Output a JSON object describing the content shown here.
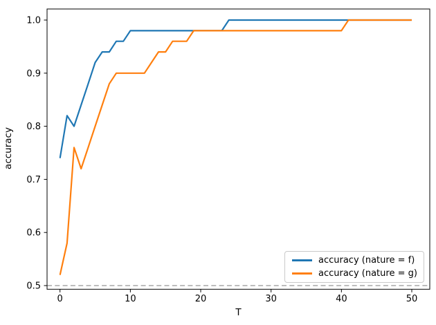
{
  "chart_data": {
    "type": "line",
    "title": "",
    "xlabel": "T",
    "ylabel": "accuracy",
    "grid": false,
    "legend_position": "lower right",
    "xlim": [
      -1.8,
      52.6
    ],
    "ylim": [
      0.4935,
      1.0208
    ],
    "xticks": [
      0,
      10,
      20,
      30,
      40,
      50
    ],
    "xtick_labels": [
      "0",
      "10",
      "20",
      "30",
      "40",
      "50"
    ],
    "yticks": [
      0.5,
      0.6,
      0.7,
      0.8,
      0.9,
      1.0
    ],
    "ytick_labels": [
      "0.5",
      "0.6",
      "0.7",
      "0.8",
      "0.9",
      "1.0"
    ],
    "baseline": {
      "value": 0.5,
      "style": "dashed",
      "color": "#b3b3b3"
    },
    "x": [
      0,
      1,
      2,
      3,
      4,
      5,
      6,
      7,
      8,
      9,
      10,
      11,
      12,
      13,
      14,
      15,
      16,
      17,
      18,
      19,
      20,
      21,
      22,
      23,
      24,
      25,
      26,
      27,
      28,
      29,
      30,
      31,
      32,
      33,
      34,
      35,
      36,
      37,
      38,
      39,
      40,
      41,
      42,
      43,
      44,
      45,
      46,
      47,
      48,
      49,
      50
    ],
    "series": [
      {
        "name": "accuracy (nature = f)",
        "color": "#1f77b4",
        "values": [
          0.74,
          0.82,
          0.8,
          0.84,
          0.88,
          0.92,
          0.94,
          0.94,
          0.96,
          0.96,
          0.98,
          0.98,
          0.98,
          0.98,
          0.98,
          0.98,
          0.98,
          0.98,
          0.98,
          0.98,
          0.98,
          0.98,
          0.98,
          0.98,
          1.0,
          1.0,
          1.0,
          1.0,
          1.0,
          1.0,
          1.0,
          1.0,
          1.0,
          1.0,
          1.0,
          1.0,
          1.0,
          1.0,
          1.0,
          1.0,
          1.0,
          1.0,
          1.0,
          1.0,
          1.0,
          1.0,
          1.0,
          1.0,
          1.0,
          1.0,
          1.0
        ]
      },
      {
        "name": "accuracy (nature = g)",
        "color": "#ff7f0e",
        "values": [
          0.52,
          0.58,
          0.76,
          0.72,
          0.76,
          0.8,
          0.84,
          0.88,
          0.9,
          0.9,
          0.9,
          0.9,
          0.9,
          0.92,
          0.94,
          0.94,
          0.96,
          0.96,
          0.96,
          0.98,
          0.98,
          0.98,
          0.98,
          0.98,
          0.98,
          0.98,
          0.98,
          0.98,
          0.98,
          0.98,
          0.98,
          0.98,
          0.98,
          0.98,
          0.98,
          0.98,
          0.98,
          0.98,
          0.98,
          0.98,
          0.98,
          1.0,
          1.0,
          1.0,
          1.0,
          1.0,
          1.0,
          1.0,
          1.0,
          1.0,
          1.0
        ]
      }
    ]
  }
}
